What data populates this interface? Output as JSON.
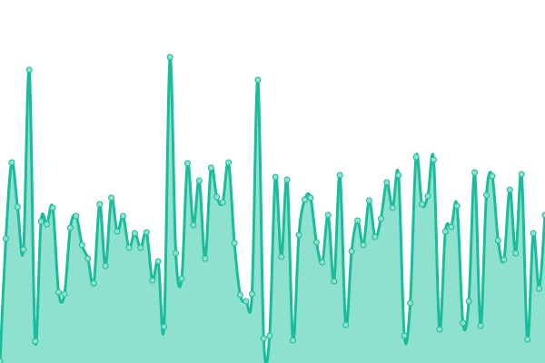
{
  "chart_data": {
    "type": "area",
    "title": "",
    "xlabel": "",
    "ylabel": "",
    "grid": false,
    "legend": "none",
    "ylim": [
      0,
      400
    ],
    "colors": {
      "line": "#1abc9c",
      "fill": "#8ee0cf",
      "point_fill": "#8ee0cf"
    },
    "values": [
      2,
      137,
      221,
      172,
      125,
      323,
      24,
      156,
      153,
      171,
      78,
      76,
      149,
      162,
      130,
      115,
      88,
      175,
      107,
      182,
      145,
      162,
      127,
      143,
      127,
      144,
      91,
      112,
      40,
      337,
      121,
      93,
      220,
      152,
      201,
      115,
      215,
      183,
      177,
      221,
      132,
      75,
      68,
      76,
      312,
      27,
      30,
      205,
      117,
      202,
      25,
      141,
      180,
      182,
      133,
      111,
      163,
      90,
      207,
      42,
      123,
      157,
      130,
      179,
      139,
      159,
      199,
      171,
      207,
      30,
      66,
      227,
      175,
      184,
      224,
      37,
      145,
      150,
      173,
      44,
      68,
      210,
      41,
      185,
      206,
      135,
      114,
      191,
      121,
      208,
      26,
      143,
      82,
      163
    ]
  }
}
